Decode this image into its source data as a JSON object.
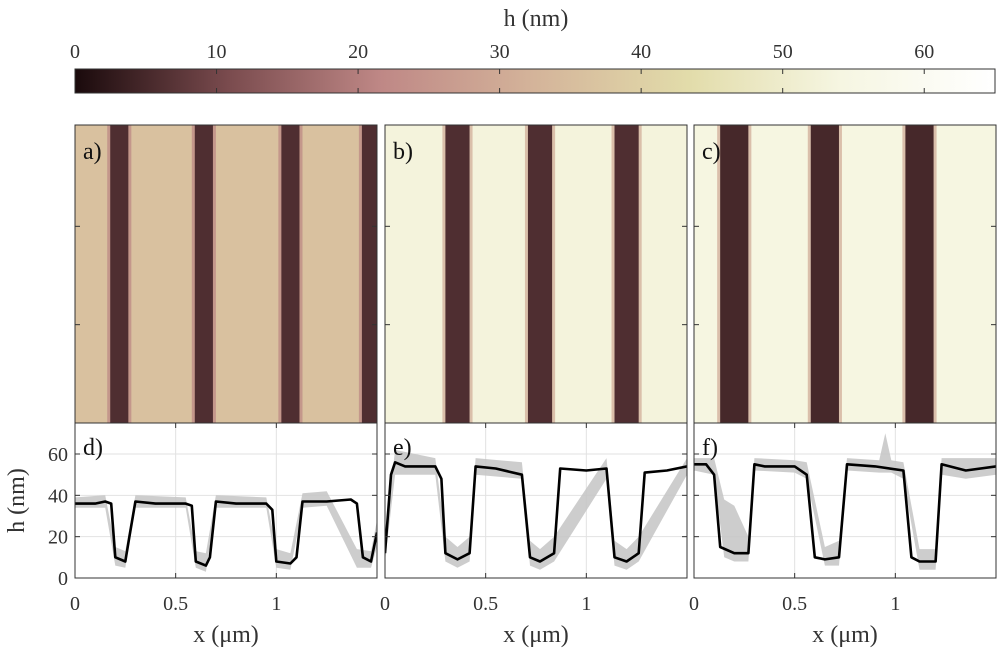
{
  "colorbar": {
    "label": "h (nm)",
    "range": [
      0,
      65
    ],
    "ticks": [
      0,
      10,
      20,
      30,
      40,
      50,
      60
    ],
    "tick_labels": [
      "0",
      "10",
      "20",
      "30",
      "40",
      "50",
      "60"
    ],
    "colormap": "pink",
    "colors": [
      "#1a0a0c",
      "#7a4b4e",
      "#bf8886",
      "#d4b49a",
      "#e2dcaa",
      "#f6f6e2",
      "#ffffff"
    ]
  },
  "maps": [
    {
      "label": "a)",
      "background_h": 36,
      "stripe_h": 6,
      "stripe_x_um": [
        0.22,
        0.64,
        1.07,
        1.47
      ],
      "stripe_width_um": 0.09
    },
    {
      "label": "b)",
      "background_h": 53,
      "stripe_h": 6,
      "stripe_x_um": [
        0.36,
        0.77,
        1.2
      ],
      "stripe_width_um": 0.12
    },
    {
      "label": "c)",
      "background_h": 54,
      "stripe_h": 5,
      "stripe_x_um": [
        0.2,
        0.65,
        1.12
      ],
      "stripe_width_um": 0.14
    }
  ],
  "chart_data": [
    {
      "type": "line",
      "panel": "d)",
      "xlabel": "x (μm)",
      "ylabel": "h (nm)",
      "xlim": [
        0,
        1.5
      ],
      "ylim": [
        0,
        75
      ],
      "xticks": [
        0,
        0.5,
        1
      ],
      "xtick_labels": [
        "0",
        "0.5",
        "1"
      ],
      "yticks": [
        0,
        20,
        40,
        60
      ],
      "ytick_labels": [
        "0",
        "20",
        "40",
        "60"
      ],
      "grid": true,
      "series": [
        {
          "x": [
            0,
            0.1,
            0.15,
            0.18,
            0.2,
            0.25,
            0.27,
            0.3,
            0.4,
            0.55,
            0.58,
            0.6,
            0.65,
            0.67,
            0.7,
            0.8,
            0.95,
            0.98,
            1.0,
            1.07,
            1.1,
            1.13,
            1.25,
            1.37,
            1.4,
            1.43,
            1.47,
            1.5
          ],
          "y": [
            36,
            36,
            37,
            36,
            10,
            8,
            20,
            37,
            36,
            36,
            35,
            8,
            6,
            10,
            37,
            36,
            36,
            33,
            8,
            7,
            10,
            37,
            37,
            38,
            36,
            10,
            8,
            22
          ]
        }
      ],
      "spread": {
        "x": [
          0,
          0.15,
          0.2,
          0.25,
          0.3,
          0.55,
          0.6,
          0.65,
          0.7,
          0.95,
          1.0,
          1.07,
          1.13,
          1.25,
          1.4,
          1.47,
          1.5
        ],
        "lower": [
          34,
          34,
          6,
          5,
          34,
          34,
          5,
          3,
          34,
          34,
          5,
          4,
          34,
          35,
          5,
          5,
          15
        ],
        "upper": [
          39,
          40,
          15,
          13,
          40,
          39,
          13,
          12,
          40,
          39,
          14,
          12,
          41,
          42,
          14,
          13,
          28
        ]
      }
    },
    {
      "type": "line",
      "panel": "e)",
      "xlabel": "x (μm)",
      "xlim": [
        0,
        1.5
      ],
      "ylim": [
        0,
        75
      ],
      "xticks": [
        0,
        0.5,
        1
      ],
      "xtick_labels": [
        "0",
        "0.5",
        "1"
      ],
      "yticks": [
        0,
        20,
        40,
        60
      ],
      "grid": true,
      "series": [
        {
          "x": [
            0,
            0.03,
            0.05,
            0.1,
            0.25,
            0.28,
            0.3,
            0.36,
            0.42,
            0.45,
            0.55,
            0.68,
            0.72,
            0.77,
            0.84,
            0.87,
            1.0,
            1.1,
            1.14,
            1.2,
            1.26,
            1.29,
            1.4,
            1.5
          ],
          "y": [
            12,
            50,
            56,
            54,
            54,
            48,
            12,
            9,
            12,
            54,
            53,
            50,
            10,
            8,
            12,
            53,
            52,
            53,
            10,
            8,
            12,
            51,
            52,
            54
          ]
        }
      ],
      "spread": {
        "x": [
          0,
          0.05,
          0.25,
          0.3,
          0.36,
          0.42,
          0.45,
          0.68,
          0.72,
          0.77,
          0.84,
          1.1,
          1.14,
          1.2,
          1.26,
          1.5
        ],
        "lower": [
          8,
          50,
          50,
          8,
          5,
          8,
          50,
          48,
          6,
          4,
          8,
          48,
          6,
          4,
          8,
          50
        ],
        "upper": [
          20,
          62,
          58,
          20,
          15,
          20,
          58,
          56,
          18,
          14,
          20,
          58,
          18,
          14,
          20,
          58
        ]
      }
    },
    {
      "type": "line",
      "panel": "f)",
      "xlabel": "x (μm)",
      "xlim": [
        0,
        1.5
      ],
      "ylim": [
        0,
        75
      ],
      "xticks": [
        0,
        0.5,
        1
      ],
      "xtick_labels": [
        "0",
        "0.5",
        "1"
      ],
      "yticks": [
        0,
        20,
        40,
        60
      ],
      "grid": true,
      "series": [
        {
          "x": [
            0,
            0.06,
            0.1,
            0.13,
            0.2,
            0.27,
            0.3,
            0.35,
            0.5,
            0.56,
            0.6,
            0.65,
            0.72,
            0.76,
            0.9,
            1.04,
            1.08,
            1.12,
            1.2,
            1.23,
            1.35,
            1.5
          ],
          "y": [
            55,
            55,
            50,
            15,
            12,
            12,
            55,
            54,
            54,
            50,
            10,
            9,
            10,
            55,
            54,
            52,
            10,
            8,
            8,
            55,
            52,
            54
          ]
        }
      ],
      "spread": {
        "x": [
          0,
          0.1,
          0.15,
          0.2,
          0.27,
          0.3,
          0.5,
          0.56,
          0.65,
          0.72,
          0.76,
          0.92,
          0.95,
          0.98,
          1.04,
          1.12,
          1.2,
          1.23,
          1.35,
          1.5
        ],
        "lower": [
          52,
          50,
          10,
          8,
          8,
          52,
          51,
          48,
          6,
          6,
          52,
          51,
          51,
          51,
          48,
          4,
          4,
          50,
          48,
          50
        ],
        "upper": [
          58,
          58,
          38,
          35,
          20,
          58,
          57,
          56,
          15,
          18,
          58,
          57,
          70,
          57,
          56,
          14,
          14,
          58,
          58,
          58
        ]
      }
    }
  ]
}
